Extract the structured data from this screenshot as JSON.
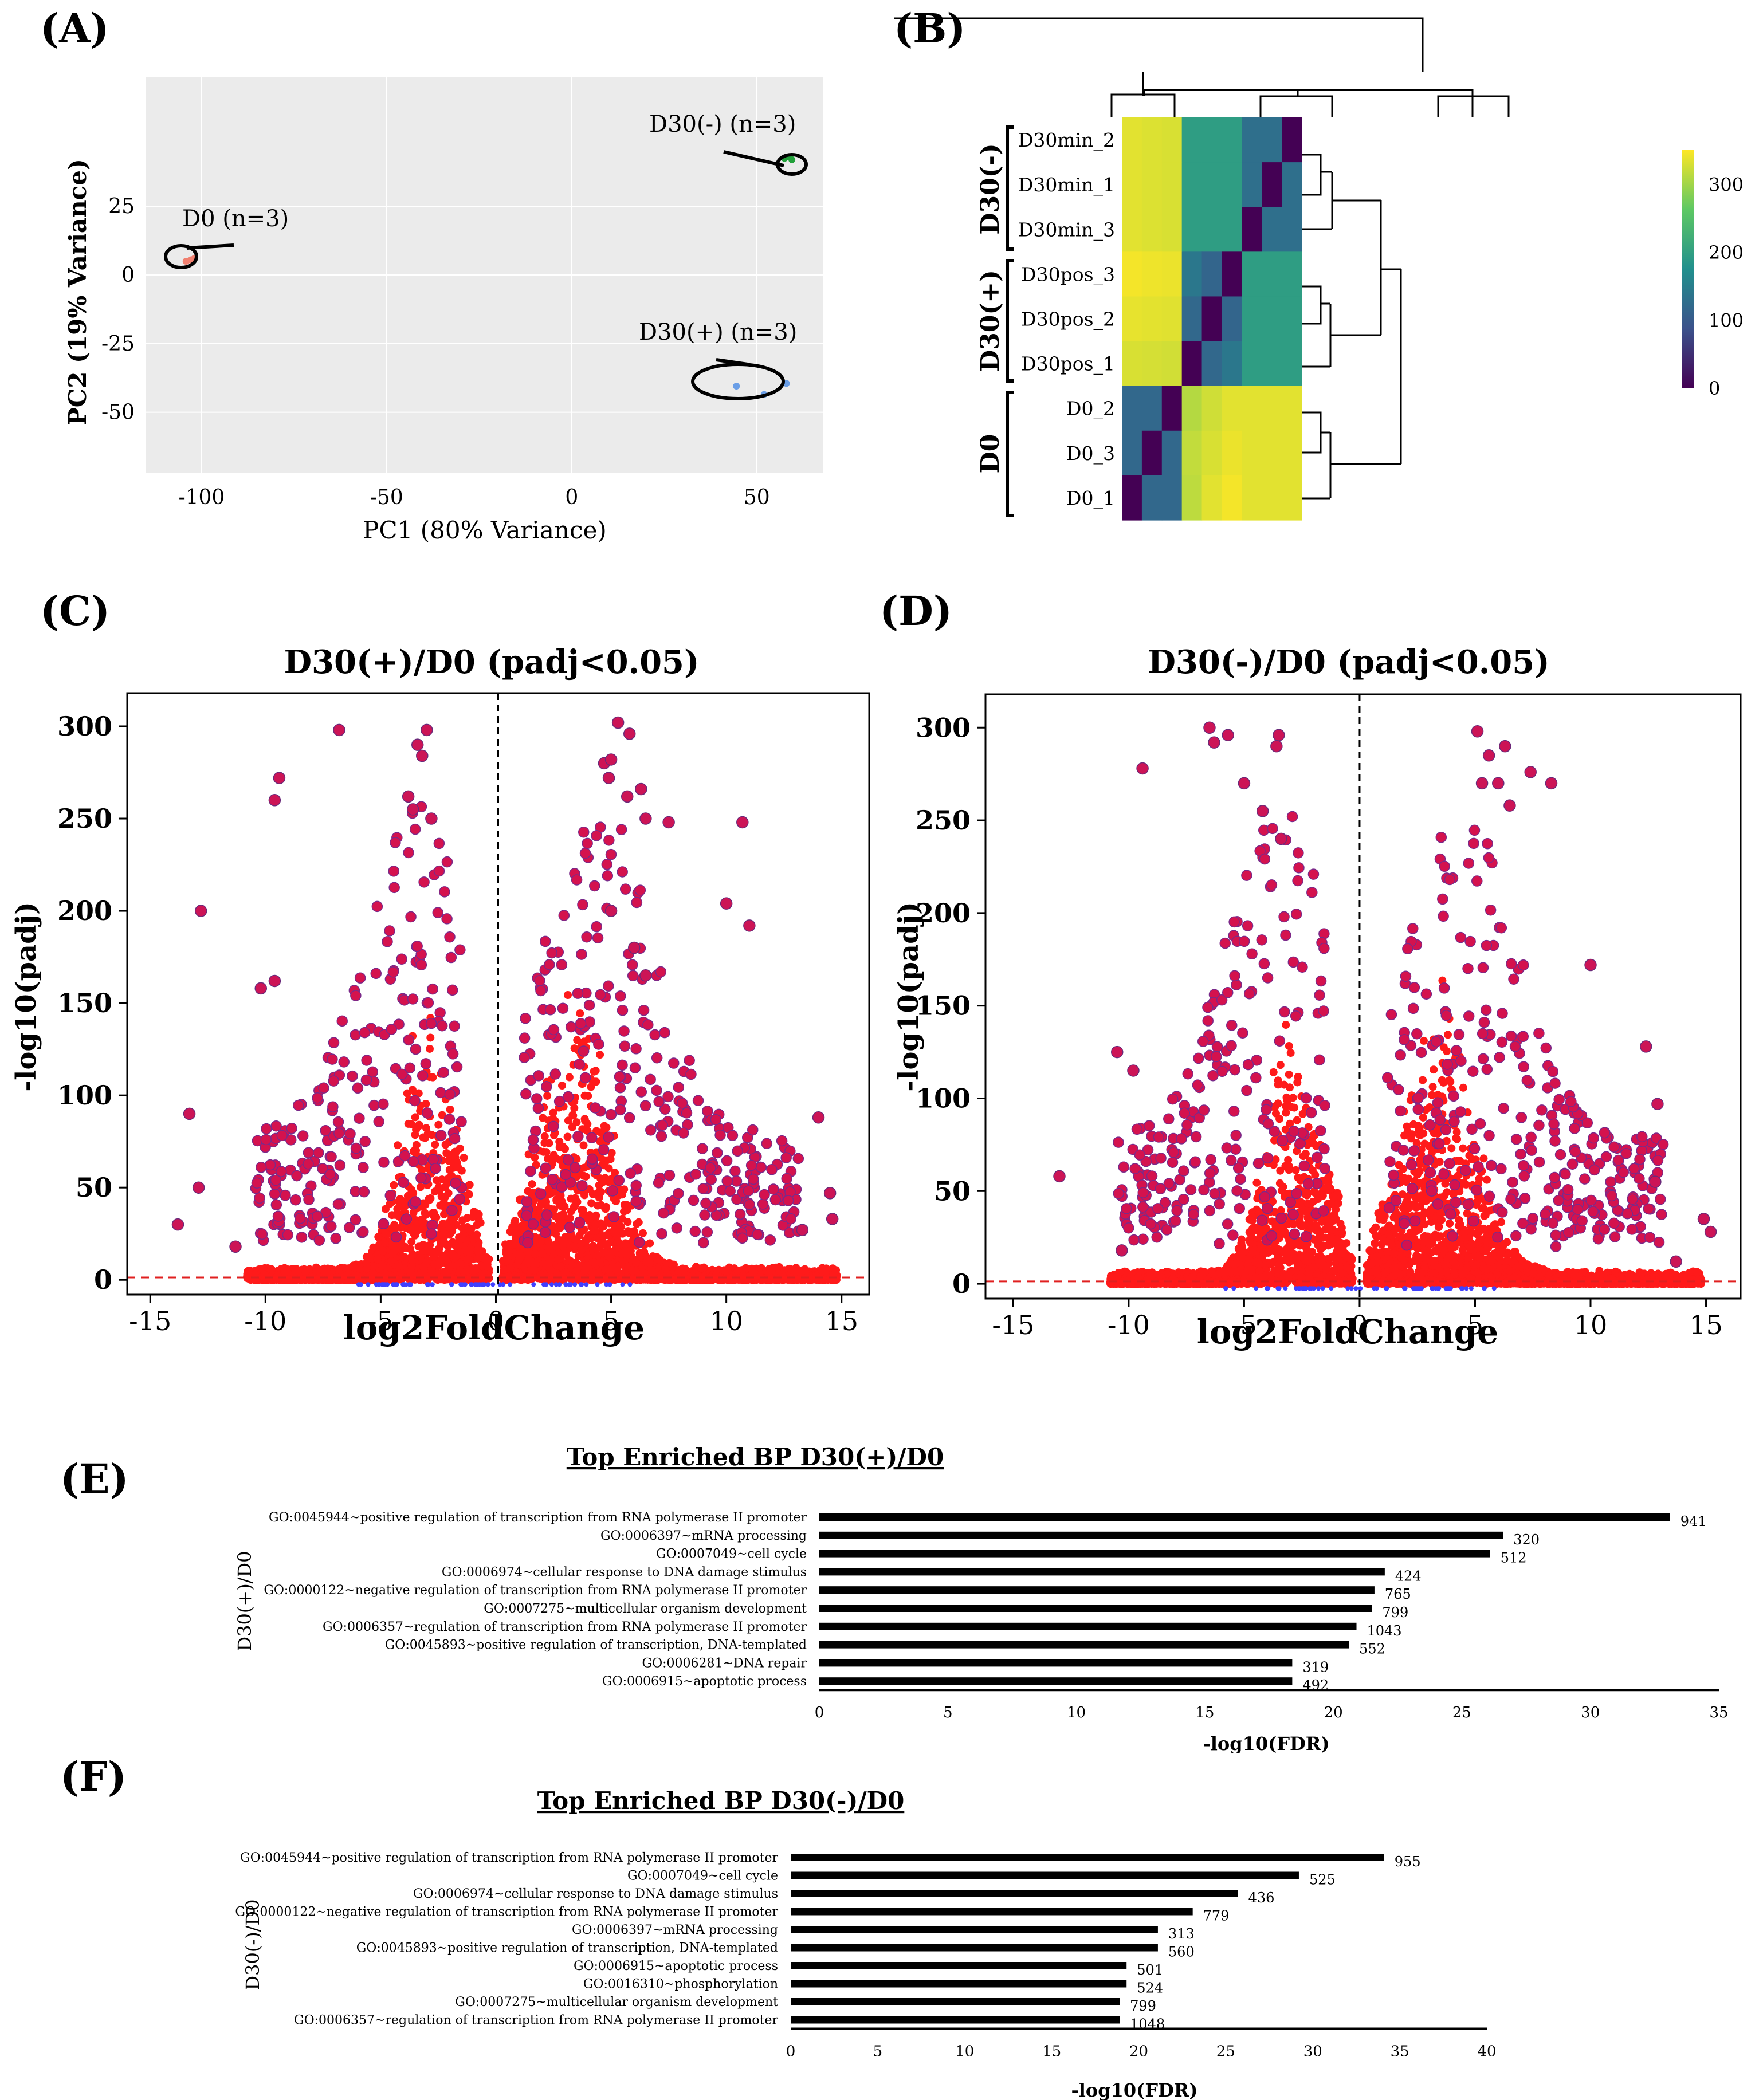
{
  "panels": {
    "a": "(A)",
    "b": "(B)",
    "c": "(C)",
    "d": "(D)",
    "e": "(E)",
    "f": "(F)"
  },
  "pca": {
    "type": "scatter",
    "xlabel": "PC1 (80% Variance)",
    "ylabel": "PC2 (19% Variance)",
    "xlim": [
      -115,
      68
    ],
    "ylim": [
      -72,
      72
    ],
    "x_ticks": [
      "-100",
      "-50",
      "0",
      "50"
    ],
    "x_tick_values": [
      -100,
      -50,
      0,
      50
    ],
    "y_ticks": [
      "25",
      "0",
      "-25",
      "-50"
    ],
    "y_tick_values": [
      25,
      0,
      -25,
      -50
    ],
    "groups": [
      {
        "label": "D0 (n=3)",
        "color": "#f08070",
        "points": [
          [
            -104.2,
            5.0
          ],
          [
            -103.0,
            5.5
          ],
          [
            -102.0,
            6.0
          ]
        ]
      },
      {
        "label": "D30(-) (n=3)",
        "color": "#22a03a",
        "points": [
          [
            57.5,
            42.5
          ],
          [
            58.5,
            43.0
          ],
          [
            59.5,
            42.0
          ]
        ]
      },
      {
        "label": "D30(+) (n=3)",
        "color": "#6a9ee6",
        "points": [
          [
            44.5,
            -40.5
          ],
          [
            52.0,
            -43.5
          ],
          [
            58.0,
            -39.5
          ]
        ]
      }
    ]
  },
  "heatmap": {
    "type": "heatmap",
    "row_labels": [
      "D30min_2",
      "D30min_1",
      "D30min_3",
      "D30pos_3",
      "D30pos_2",
      "D30pos_1",
      "D0_2",
      "D0_3",
      "D0_1"
    ],
    "group_labels": [
      "D30(-)",
      "D30(+)",
      "D0"
    ],
    "colorbar_ticks": [
      "300",
      "200",
      "100",
      "0"
    ],
    "colorbar_values": [
      300,
      200,
      100,
      0
    ],
    "vmax": 350,
    "colors": [
      "#440154",
      "#3b528b",
      "#21908d",
      "#5dc863",
      "#fde725"
    ],
    "matrix": [
      [
        335,
        332,
        330,
        195,
        195,
        195,
        128,
        128,
        0
      ],
      [
        335,
        332,
        330,
        195,
        195,
        195,
        128,
        0,
        128
      ],
      [
        335,
        332,
        330,
        195,
        195,
        195,
        0,
        128,
        128
      ],
      [
        345,
        342,
        340,
        140,
        115,
        0,
        195,
        195,
        195
      ],
      [
        338,
        336,
        334,
        118,
        0,
        115,
        195,
        195,
        195
      ],
      [
        330,
        328,
        326,
        0,
        118,
        140,
        195,
        195,
        195
      ],
      [
        118,
        118,
        0,
        310,
        325,
        335,
        335,
        335,
        335
      ],
      [
        118,
        0,
        118,
        318,
        330,
        340,
        335,
        335,
        335
      ],
      [
        0,
        118,
        118,
        315,
        335,
        345,
        335,
        335,
        335
      ]
    ]
  },
  "volcano_c": {
    "type": "scatter",
    "title": "D30(+)/D0 (padj<0.05)",
    "xlabel": "log2FoldChange",
    "ylabel": "-log10(padj)",
    "xlim": [
      -16,
      16.2
    ],
    "ylim": [
      -8,
      318
    ],
    "x_ticks": [
      "-15",
      "-10",
      "-5",
      "0",
      "5",
      "10",
      "15"
    ],
    "x_tick_values": [
      -15,
      -10,
      -5,
      0,
      5,
      10,
      15
    ],
    "y_ticks": [
      "0",
      "50",
      "100",
      "150",
      "200",
      "250",
      "300"
    ],
    "y_tick_values": [
      0,
      50,
      100,
      150,
      200,
      250,
      300
    ],
    "threshold_y": 1.3,
    "vline_x": 0.1,
    "highlight_points": [
      [
        -6.8,
        298
      ],
      [
        -3.0,
        298
      ],
      [
        -3.4,
        290
      ],
      [
        -3.2,
        284
      ],
      [
        -3.8,
        262
      ],
      [
        -2.8,
        250
      ],
      [
        -3.6,
        255
      ],
      [
        -9.4,
        272
      ],
      [
        -9.6,
        260
      ],
      [
        -12.8,
        200
      ],
      [
        -13.3,
        90
      ],
      [
        -12.9,
        50
      ],
      [
        -13.8,
        30
      ],
      [
        -11.3,
        18
      ],
      [
        -10.2,
        158
      ],
      [
        -9.6,
        162
      ],
      [
        5.3,
        302
      ],
      [
        5.8,
        296
      ],
      [
        4.7,
        280
      ],
      [
        5.0,
        282
      ],
      [
        4.9,
        272
      ],
      [
        6.3,
        266
      ],
      [
        5.7,
        262
      ],
      [
        6.5,
        250
      ],
      [
        7.5,
        248
      ],
      [
        10.7,
        248
      ],
      [
        10.0,
        204
      ],
      [
        11.0,
        192
      ],
      [
        14.0,
        88
      ],
      [
        14.5,
        47
      ],
      [
        14.6,
        33
      ],
      [
        13.3,
        27
      ],
      [
        5.0,
        200
      ],
      [
        6.0,
        180
      ],
      [
        6.5,
        165
      ]
    ],
    "noise_seed": 11
  },
  "volcano_d": {
    "type": "scatter",
    "title": "D30(-)/D0 (padj<0.05)",
    "xlabel": "log2FoldChange",
    "ylabel": "-log10(padj)",
    "xlim": [
      -16.2,
      16.5
    ],
    "ylim": [
      -8,
      318
    ],
    "x_ticks": [
      "-15",
      "-10",
      "-5",
      "0",
      "5",
      "10",
      "15"
    ],
    "x_tick_values": [
      -15,
      -10,
      -5,
      0,
      5,
      10,
      15
    ],
    "y_ticks": [
      "0",
      "50",
      "100",
      "150",
      "200",
      "250",
      "300"
    ],
    "y_tick_values": [
      0,
      50,
      100,
      150,
      200,
      250,
      300
    ],
    "threshold_y": 1.3,
    "vline_x": 0.0,
    "highlight_points": [
      [
        -6.5,
        300
      ],
      [
        -6.3,
        292
      ],
      [
        -5.7,
        296
      ],
      [
        -3.5,
        296
      ],
      [
        -3.6,
        290
      ],
      [
        -5.0,
        270
      ],
      [
        -9.4,
        278
      ],
      [
        -4.2,
        255
      ],
      [
        -3.4,
        240
      ],
      [
        -13.0,
        58
      ],
      [
        -10.5,
        125
      ],
      [
        -9.8,
        115
      ],
      [
        -10.3,
        18
      ],
      [
        5.1,
        298
      ],
      [
        6.3,
        290
      ],
      [
        5.6,
        285
      ],
      [
        5.3,
        270
      ],
      [
        6.0,
        270
      ],
      [
        7.4,
        276
      ],
      [
        8.3,
        270
      ],
      [
        6.5,
        258
      ],
      [
        10.0,
        172
      ],
      [
        12.4,
        128
      ],
      [
        12.9,
        97
      ],
      [
        15.2,
        28
      ],
      [
        14.9,
        35
      ],
      [
        13.7,
        12
      ],
      [
        12.8,
        55
      ]
    ],
    "noise_seed": 23
  },
  "go_e": {
    "type": "bar",
    "title": "Top Enriched BP D30(+)/D0",
    "ylabel": "D30(+)/D0",
    "xlabel": "-log10(FDR)",
    "xlim": [
      0,
      35
    ],
    "x_ticks": [
      "0",
      "5",
      "10",
      "15",
      "20",
      "25",
      "30",
      "35"
    ],
    "x_tick_values": [
      0,
      5,
      10,
      15,
      20,
      25,
      30,
      35
    ],
    "categories": [
      "GO:0045944~positive regulation of transcription from RNA polymerase II promoter",
      "GO:0006397~mRNA processing",
      "GO:0007049~cell cycle",
      "GO:0006974~cellular response to DNA damage stimulus",
      "GO:0000122~negative regulation of transcription from RNA polymerase II promoter",
      "GO:0007275~multicellular organism development",
      "GO:0006357~regulation of transcription from RNA polymerase II promoter",
      "GO:0045893~positive regulation of transcription, DNA-templated",
      "GO:0006281~DNA repair",
      "GO:0006915~apoptotic process"
    ],
    "values": [
      33.1,
      26.6,
      26.1,
      22.0,
      21.6,
      21.5,
      20.9,
      20.6,
      18.4,
      18.4
    ],
    "counts": [
      "941",
      "320",
      "512",
      "424",
      "765",
      "799",
      "1043",
      "552",
      "319",
      "492"
    ]
  },
  "go_f": {
    "type": "bar",
    "title": "Top Enriched BP D30(-)/D0",
    "ylabel": "D30(-)/D0",
    "xlabel": "-log10(FDR)",
    "xlim": [
      0,
      40
    ],
    "x_ticks": [
      "0",
      "5",
      "10",
      "15",
      "20",
      "25",
      "30",
      "35",
      "40"
    ],
    "x_tick_values": [
      0,
      5,
      10,
      15,
      20,
      25,
      30,
      35,
      40
    ],
    "categories": [
      "GO:0045944~positive regulation of transcription from RNA polymerase II promoter",
      "GO:0007049~cell cycle",
      "GO:0006974~cellular response to DNA damage stimulus",
      "GO:0000122~negative regulation of transcription from RNA polymerase II promoter",
      "GO:0006397~mRNA processing",
      "GO:0045893~positive regulation of transcription, DNA-templated",
      "GO:0006915~apoptotic process",
      "GO:0016310~phosphorylation",
      "GO:0007275~multicellular organism development",
      "GO:0006357~regulation of transcription from RNA polymerase II promoter"
    ],
    "values": [
      34.1,
      29.2,
      25.7,
      23.1,
      21.1,
      21.1,
      19.3,
      19.3,
      18.9,
      18.9
    ],
    "counts": [
      "955",
      "525",
      "436",
      "779",
      "313",
      "560",
      "501",
      "524",
      "799",
      "1048"
    ]
  }
}
